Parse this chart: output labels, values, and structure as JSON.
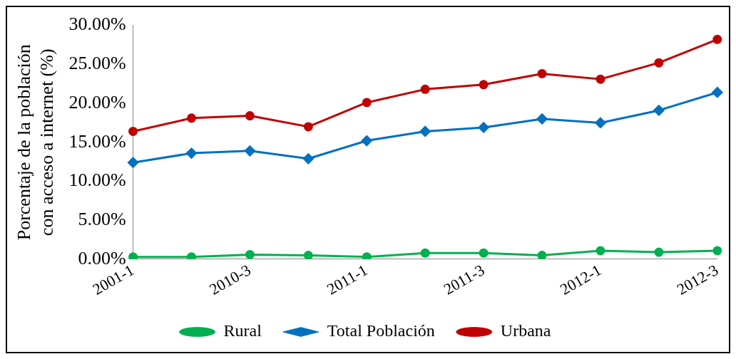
{
  "chart_data": {
    "type": "line",
    "ylabel": "Porcentaje de la población con acceso a internet (%)",
    "categories": [
      "2001-1",
      null,
      "2010-3",
      null,
      "2011-1",
      null,
      "2011-3",
      null,
      "2012-1",
      null,
      "2012-3"
    ],
    "series": [
      {
        "name": "Rural",
        "color": "#00b050",
        "marker": "circle",
        "values": [
          0.3,
          0.3,
          0.6,
          0.5,
          0.3,
          0.8,
          0.8,
          0.5,
          1.1,
          0.9,
          1.1
        ]
      },
      {
        "name": "Total Población",
        "color": "#0070c0",
        "marker": "diamond",
        "values": [
          12.4,
          13.6,
          13.9,
          12.9,
          15.2,
          16.4,
          16.9,
          18.0,
          17.5,
          19.1,
          21.4
        ]
      },
      {
        "name": "Urbana",
        "color": "#c00000",
        "marker": "circle",
        "values": [
          16.4,
          18.1,
          18.4,
          17.0,
          20.1,
          21.8,
          22.4,
          23.8,
          23.1,
          25.2,
          28.2
        ]
      }
    ],
    "ylim": [
      0,
      30
    ],
    "yticks": [
      {
        "value": 0,
        "label": "0.00%"
      },
      {
        "value": 5,
        "label": "5.00%"
      },
      {
        "value": 10,
        "label": "10.00%"
      },
      {
        "value": 15,
        "label": "15.00%"
      },
      {
        "value": 20,
        "label": "20.00%"
      },
      {
        "value": 25,
        "label": "25.00%"
      },
      {
        "value": 30,
        "label": "30.00%"
      }
    ],
    "grid": false,
    "legend": "bottom",
    "line_style": "solid"
  }
}
